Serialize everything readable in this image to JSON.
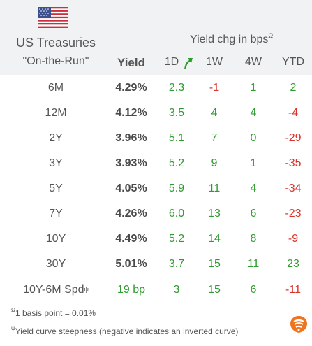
{
  "header": {
    "flag_icon": "us-flag-icon",
    "title_line1": "US Treasuries",
    "title_line2": "\"On-the-Run\"",
    "yield_label": "Yield",
    "chg_label": "Yield chg in bps",
    "chg_sup": "Ω",
    "col_1d": "1D",
    "col_1w": "1W",
    "col_4w": "4W",
    "col_ytd": "YTD",
    "sort_icon": "green-arrow-icon"
  },
  "rows": [
    {
      "label": "6M",
      "yield": "4.29%",
      "d1": "2.3",
      "w1": "-1",
      "w4": "1",
      "ytd": "2"
    },
    {
      "label": "12M",
      "yield": "4.12%",
      "d1": "3.5",
      "w1": "4",
      "w4": "4",
      "ytd": "-4"
    },
    {
      "label": "2Y",
      "yield": "3.96%",
      "d1": "5.1",
      "w1": "7",
      "w4": "0",
      "ytd": "-29"
    },
    {
      "label": "3Y",
      "yield": "3.93%",
      "d1": "5.2",
      "w1": "9",
      "w4": "1",
      "ytd": "-35"
    },
    {
      "label": "5Y",
      "yield": "4.05%",
      "d1": "5.9",
      "w1": "11",
      "w4": "4",
      "ytd": "-34"
    },
    {
      "label": "7Y",
      "yield": "4.26%",
      "d1": "6.0",
      "w1": "13",
      "w4": "6",
      "ytd": "-23"
    },
    {
      "label": "10Y",
      "yield": "4.49%",
      "d1": "5.2",
      "w1": "14",
      "w4": "8",
      "ytd": "-9"
    },
    {
      "label": "30Y",
      "yield": "5.01%",
      "d1": "3.7",
      "w1": "15",
      "w4": "11",
      "ytd": "23"
    }
  ],
  "spread": {
    "label": "10Y-6M Spd",
    "sup": "ψ",
    "yield": "19 bp",
    "d1": "3",
    "w1": "15",
    "w4": "6",
    "ytd": "-11"
  },
  "footnotes": {
    "note1_sup": "Ω",
    "note1": "1 basis point = 0.01%",
    "note2_sup": "ψ",
    "note2": "Yield curve steepness (negative indicates an inverted curve)"
  },
  "logo_icon": "brand-logo-icon",
  "colors": {
    "positive": "#2e9b2e",
    "negative": "#d9342b",
    "header_bg": "#f1f2f3",
    "logo": "#f0741e"
  }
}
